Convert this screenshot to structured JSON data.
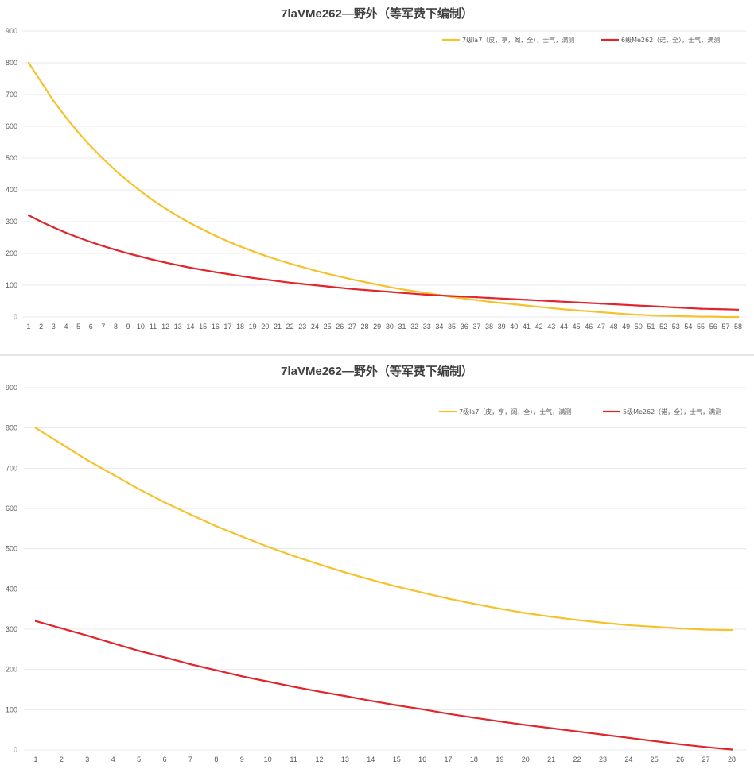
{
  "colors": {
    "series_yellow": "#F5C22B",
    "series_red": "#E0262A",
    "grid": "#E8E8E8",
    "text": "#595959"
  },
  "chart_data": [
    {
      "type": "line",
      "title": "7laVMe262—野外（等军费下编制）",
      "xlabel": "",
      "ylabel": "",
      "ylim": [
        0,
        900
      ],
      "yticks": [
        "0",
        "100",
        "200",
        "300",
        "400",
        "500",
        "600",
        "700",
        "800",
        "900"
      ],
      "x": [
        1,
        2,
        3,
        4,
        5,
        6,
        7,
        8,
        9,
        10,
        11,
        12,
        13,
        14,
        15,
        16,
        17,
        18,
        19,
        20,
        21,
        22,
        23,
        24,
        25,
        26,
        27,
        28,
        29,
        30,
        31,
        32,
        33,
        34,
        35,
        36,
        37,
        38,
        39,
        40,
        41,
        42,
        43,
        44,
        45,
        46,
        47,
        48,
        49,
        50,
        51,
        52,
        53,
        54,
        55,
        56,
        57,
        58
      ],
      "grid": true,
      "legend": "top-right",
      "series": [
        {
          "name": "7级la7（皮，亨，阁，全），士气，满测",
          "color": "#F5C22B",
          "values": [
            800,
            740,
            680,
            628,
            580,
            537,
            497,
            460,
            427,
            396,
            367,
            341,
            317,
            295,
            275,
            256,
            238,
            222,
            207,
            193,
            180,
            168,
            157,
            146,
            136,
            127,
            118,
            110,
            102,
            94,
            87,
            81,
            75,
            69,
            63,
            58,
            53,
            48,
            44,
            40,
            36,
            32,
            28,
            24,
            21,
            18,
            15,
            12,
            9,
            7,
            5,
            4,
            3,
            2,
            1,
            1,
            0,
            0
          ]
        },
        {
          "name": "6级Me262（诺，全），士气，满测",
          "color": "#E0262A",
          "values": [
            320,
            300,
            282,
            265,
            250,
            236,
            223,
            211,
            200,
            190,
            180,
            171,
            163,
            155,
            148,
            141,
            135,
            129,
            123,
            118,
            113,
            108,
            104,
            100,
            96,
            92,
            88,
            85,
            82,
            79,
            76,
            73,
            70,
            68,
            66,
            64,
            62,
            60,
            58,
            56,
            54,
            52,
            50,
            48,
            46,
            44,
            42,
            40,
            38,
            36,
            34,
            32,
            30,
            28,
            26,
            25,
            24,
            23
          ]
        }
      ]
    },
    {
      "type": "line",
      "title": "7laVMe262—野外（等军费下编制）",
      "xlabel": "",
      "ylabel": "",
      "ylim": [
        0,
        900
      ],
      "yticks": [
        "0",
        "100",
        "200",
        "300",
        "400",
        "500",
        "600",
        "700",
        "800",
        "900"
      ],
      "x": [
        1,
        2,
        3,
        4,
        5,
        6,
        7,
        8,
        9,
        10,
        11,
        12,
        13,
        14,
        15,
        16,
        17,
        18,
        19,
        20,
        21,
        22,
        23,
        24,
        25,
        26,
        27,
        28
      ],
      "grid": true,
      "legend": "top-right",
      "series": [
        {
          "name": "7级la7（皮，亨，阔，全），士气，满测",
          "color": "#F5C22B",
          "values": [
            800,
            760,
            720,
            684,
            648,
            615,
            585,
            556,
            530,
            505,
            482,
            461,
            441,
            423,
            406,
            391,
            376,
            363,
            351,
            340,
            331,
            323,
            316,
            310,
            306,
            302,
            299,
            298
          ]
        },
        {
          "name": "5级Me262（诺，全），士气，满测",
          "color": "#E0262A",
          "values": [
            320,
            302,
            284,
            265,
            246,
            230,
            213,
            198,
            183,
            170,
            157,
            145,
            134,
            122,
            111,
            101,
            90,
            80,
            71,
            62,
            54,
            46,
            38,
            30,
            22,
            14,
            7,
            1
          ]
        }
      ]
    }
  ]
}
